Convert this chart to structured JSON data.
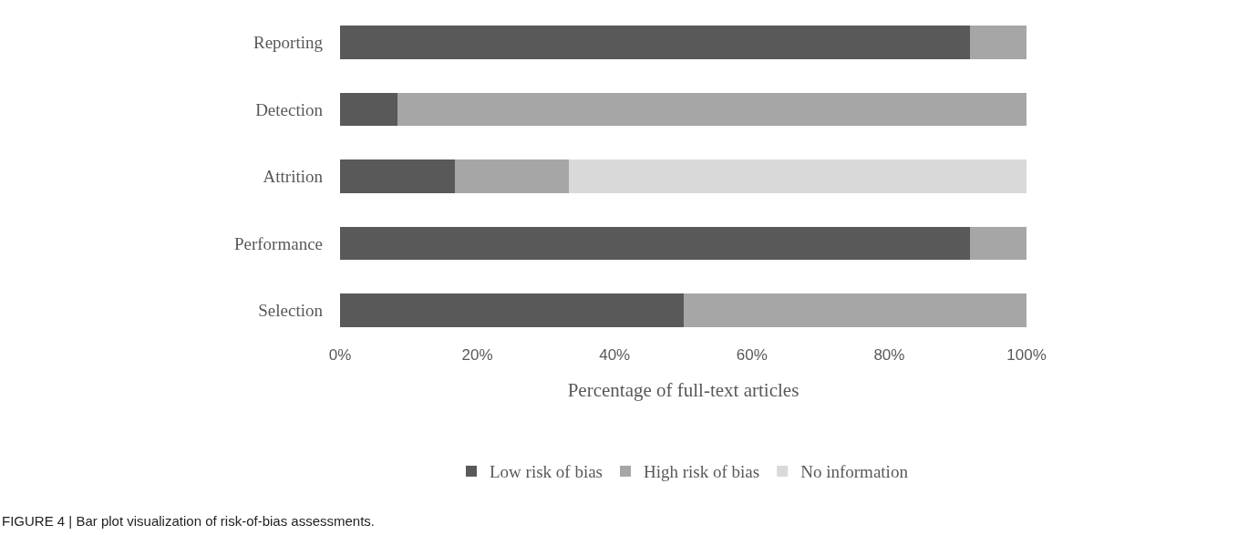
{
  "chart_data": {
    "type": "bar",
    "orientation": "horizontal",
    "stacked": true,
    "categories": [
      "Reporting",
      "Detection",
      "Attrition",
      "Performance",
      "Selection"
    ],
    "series": [
      {
        "name": "Low risk of bias",
        "color": "#595959",
        "values": [
          91.7,
          8.3,
          16.7,
          91.7,
          50
        ]
      },
      {
        "name": "High risk of bias",
        "color": "#a6a6a6",
        "values": [
          8.3,
          91.7,
          16.6,
          8.3,
          50
        ]
      },
      {
        "name": "No information",
        "color": "#d9d9d9",
        "values": [
          0,
          0,
          66.7,
          0,
          0
        ]
      }
    ],
    "xlim": [
      0,
      100
    ],
    "xticks": [
      {
        "value": 0,
        "label": "0%"
      },
      {
        "value": 20,
        "label": "20%"
      },
      {
        "value": 40,
        "label": "40%"
      },
      {
        "value": 60,
        "label": "60%"
      },
      {
        "value": 80,
        "label": "80%"
      },
      {
        "value": 100,
        "label": "100%"
      }
    ],
    "xlabel": "Percentage of full-text articles",
    "legend": "bottom",
    "annotations": [
      "FIGURE 4 | Bar plot visualization of risk-of-bias assessments."
    ]
  }
}
